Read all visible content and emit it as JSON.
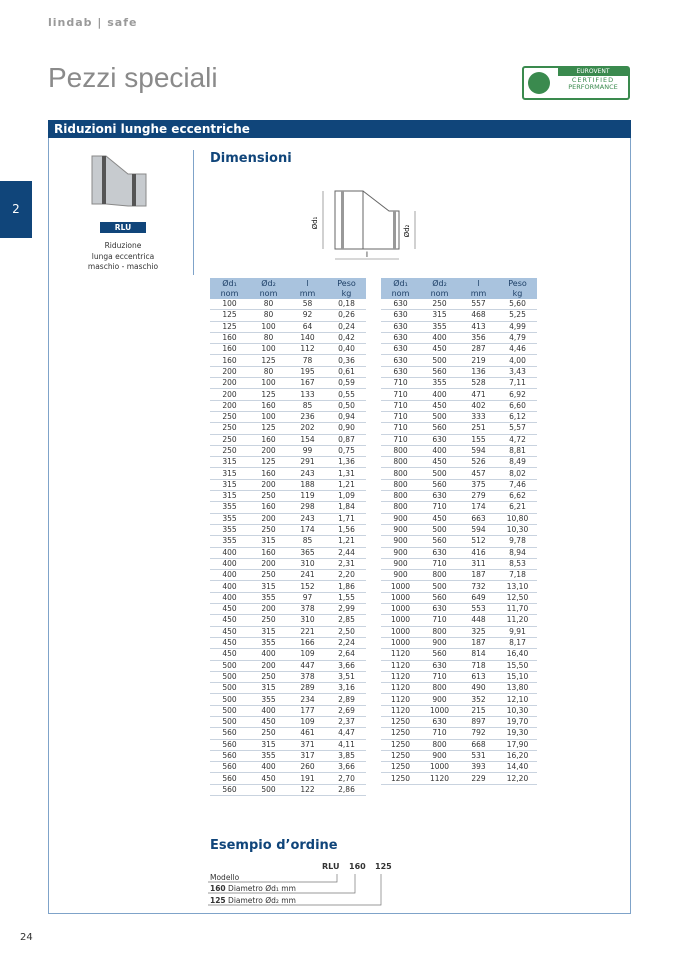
{
  "header": {
    "brand": "lindab | safe",
    "title": "Pezzi speciali",
    "page_number": "24",
    "chapter_tab": "2"
  },
  "certification": {
    "line1": "EUROVENT",
    "line2": "CERTIFIED",
    "line3": "PERFORMANCE"
  },
  "section": {
    "title": "Riduzioni lunghe eccentriche",
    "product": {
      "code": "RLU",
      "caption": [
        "Riduzione",
        "lunga eccentrica",
        "maschio - maschio"
      ]
    },
    "dimensions_title": "Dimensioni",
    "diagram": {
      "label_d1": "Ød₁",
      "label_d2": "Ød₂",
      "label_l": "l"
    },
    "table": {
      "headers": [
        "Ød₁",
        "Ød₂",
        "l",
        "Peso"
      ],
      "units": [
        "nom",
        "nom",
        "mm",
        "kg"
      ],
      "left_rows": [
        [
          "100",
          "80",
          "58",
          "0,18"
        ],
        [
          "125",
          "80",
          "92",
          "0,26"
        ],
        [
          "125",
          "100",
          "64",
          "0,24"
        ],
        [
          "160",
          "80",
          "140",
          "0,42"
        ],
        [
          "160",
          "100",
          "112",
          "0,40"
        ],
        [
          "160",
          "125",
          "78",
          "0,36"
        ],
        [
          "200",
          "80",
          "195",
          "0,61"
        ],
        [
          "200",
          "100",
          "167",
          "0,59"
        ],
        [
          "200",
          "125",
          "133",
          "0,55"
        ],
        [
          "200",
          "160",
          "85",
          "0,50"
        ],
        [
          "250",
          "100",
          "236",
          "0,94"
        ],
        [
          "250",
          "125",
          "202",
          "0,90"
        ],
        [
          "250",
          "160",
          "154",
          "0,87"
        ],
        [
          "250",
          "200",
          "99",
          "0,75"
        ],
        [
          "315",
          "125",
          "291",
          "1,36"
        ],
        [
          "315",
          "160",
          "243",
          "1,31"
        ],
        [
          "315",
          "200",
          "188",
          "1,21"
        ],
        [
          "315",
          "250",
          "119",
          "1,09"
        ],
        [
          "355",
          "160",
          "298",
          "1,84"
        ],
        [
          "355",
          "200",
          "243",
          "1,71"
        ],
        [
          "355",
          "250",
          "174",
          "1,56"
        ],
        [
          "355",
          "315",
          "85",
          "1,21"
        ],
        [
          "400",
          "160",
          "365",
          "2,44"
        ],
        [
          "400",
          "200",
          "310",
          "2,31"
        ],
        [
          "400",
          "250",
          "241",
          "2,20"
        ],
        [
          "400",
          "315",
          "152",
          "1,86"
        ],
        [
          "400",
          "355",
          "97",
          "1,55"
        ],
        [
          "450",
          "200",
          "378",
          "2,99"
        ],
        [
          "450",
          "250",
          "310",
          "2,85"
        ],
        [
          "450",
          "315",
          "221",
          "2,50"
        ],
        [
          "450",
          "355",
          "166",
          "2,24"
        ],
        [
          "450",
          "400",
          "109",
          "2,64"
        ],
        [
          "500",
          "200",
          "447",
          "3,66"
        ],
        [
          "500",
          "250",
          "378",
          "3,51"
        ],
        [
          "500",
          "315",
          "289",
          "3,16"
        ],
        [
          "500",
          "355",
          "234",
          "2,89"
        ],
        [
          "500",
          "400",
          "177",
          "2,69"
        ],
        [
          "500",
          "450",
          "109",
          "2,37"
        ],
        [
          "560",
          "250",
          "461",
          "4,47"
        ],
        [
          "560",
          "315",
          "371",
          "4,11"
        ],
        [
          "560",
          "355",
          "317",
          "3,85"
        ],
        [
          "560",
          "400",
          "260",
          "3,66"
        ],
        [
          "560",
          "450",
          "191",
          "2,70"
        ],
        [
          "560",
          "500",
          "122",
          "2,86"
        ]
      ],
      "right_rows": [
        [
          "630",
          "250",
          "557",
          "5,60"
        ],
        [
          "630",
          "315",
          "468",
          "5,25"
        ],
        [
          "630",
          "355",
          "413",
          "4,99"
        ],
        [
          "630",
          "400",
          "356",
          "4,79"
        ],
        [
          "630",
          "450",
          "287",
          "4,46"
        ],
        [
          "630",
          "500",
          "219",
          "4,00"
        ],
        [
          "630",
          "560",
          "136",
          "3,43"
        ],
        [
          "710",
          "355",
          "528",
          "7,11"
        ],
        [
          "710",
          "400",
          "471",
          "6,92"
        ],
        [
          "710",
          "450",
          "402",
          "6,60"
        ],
        [
          "710",
          "500",
          "333",
          "6,12"
        ],
        [
          "710",
          "560",
          "251",
          "5,57"
        ],
        [
          "710",
          "630",
          "155",
          "4,72"
        ],
        [
          "800",
          "400",
          "594",
          "8,81"
        ],
        [
          "800",
          "450",
          "526",
          "8,49"
        ],
        [
          "800",
          "500",
          "457",
          "8,02"
        ],
        [
          "800",
          "560",
          "375",
          "7,46"
        ],
        [
          "800",
          "630",
          "279",
          "6,62"
        ],
        [
          "800",
          "710",
          "174",
          "6,21"
        ],
        [
          "900",
          "450",
          "663",
          "10,80"
        ],
        [
          "900",
          "500",
          "594",
          "10,30"
        ],
        [
          "900",
          "560",
          "512",
          "9,78"
        ],
        [
          "900",
          "630",
          "416",
          "8,94"
        ],
        [
          "900",
          "710",
          "311",
          "8,53"
        ],
        [
          "900",
          "800",
          "187",
          "7,18"
        ],
        [
          "1000",
          "500",
          "732",
          "13,10"
        ],
        [
          "1000",
          "560",
          "649",
          "12,50"
        ],
        [
          "1000",
          "630",
          "553",
          "11,70"
        ],
        [
          "1000",
          "710",
          "448",
          "11,20"
        ],
        [
          "1000",
          "800",
          "325",
          "9,91"
        ],
        [
          "1000",
          "900",
          "187",
          "8,17"
        ],
        [
          "1120",
          "560",
          "814",
          "16,40"
        ],
        [
          "1120",
          "630",
          "718",
          "15,50"
        ],
        [
          "1120",
          "710",
          "613",
          "15,10"
        ],
        [
          "1120",
          "800",
          "490",
          "13,80"
        ],
        [
          "1120",
          "900",
          "352",
          "12,10"
        ],
        [
          "1120",
          "1000",
          "215",
          "10,30"
        ],
        [
          "1250",
          "630",
          "897",
          "19,70"
        ],
        [
          "1250",
          "710",
          "792",
          "19,30"
        ],
        [
          "1250",
          "800",
          "668",
          "17,90"
        ],
        [
          "1250",
          "900",
          "531",
          "16,20"
        ],
        [
          "1250",
          "1000",
          "393",
          "14,40"
        ],
        [
          "1250",
          "1120",
          "229",
          "12,20"
        ]
      ]
    },
    "order_example": {
      "title": "Esempio d’ordine",
      "codes": [
        "RLU",
        "160",
        "125"
      ],
      "model_label": "Modello",
      "lines": [
        {
          "value": "160",
          "text": "Diametro Ød₁ mm"
        },
        {
          "value": "125",
          "text": "Diametro Ød₂ mm"
        }
      ]
    }
  }
}
